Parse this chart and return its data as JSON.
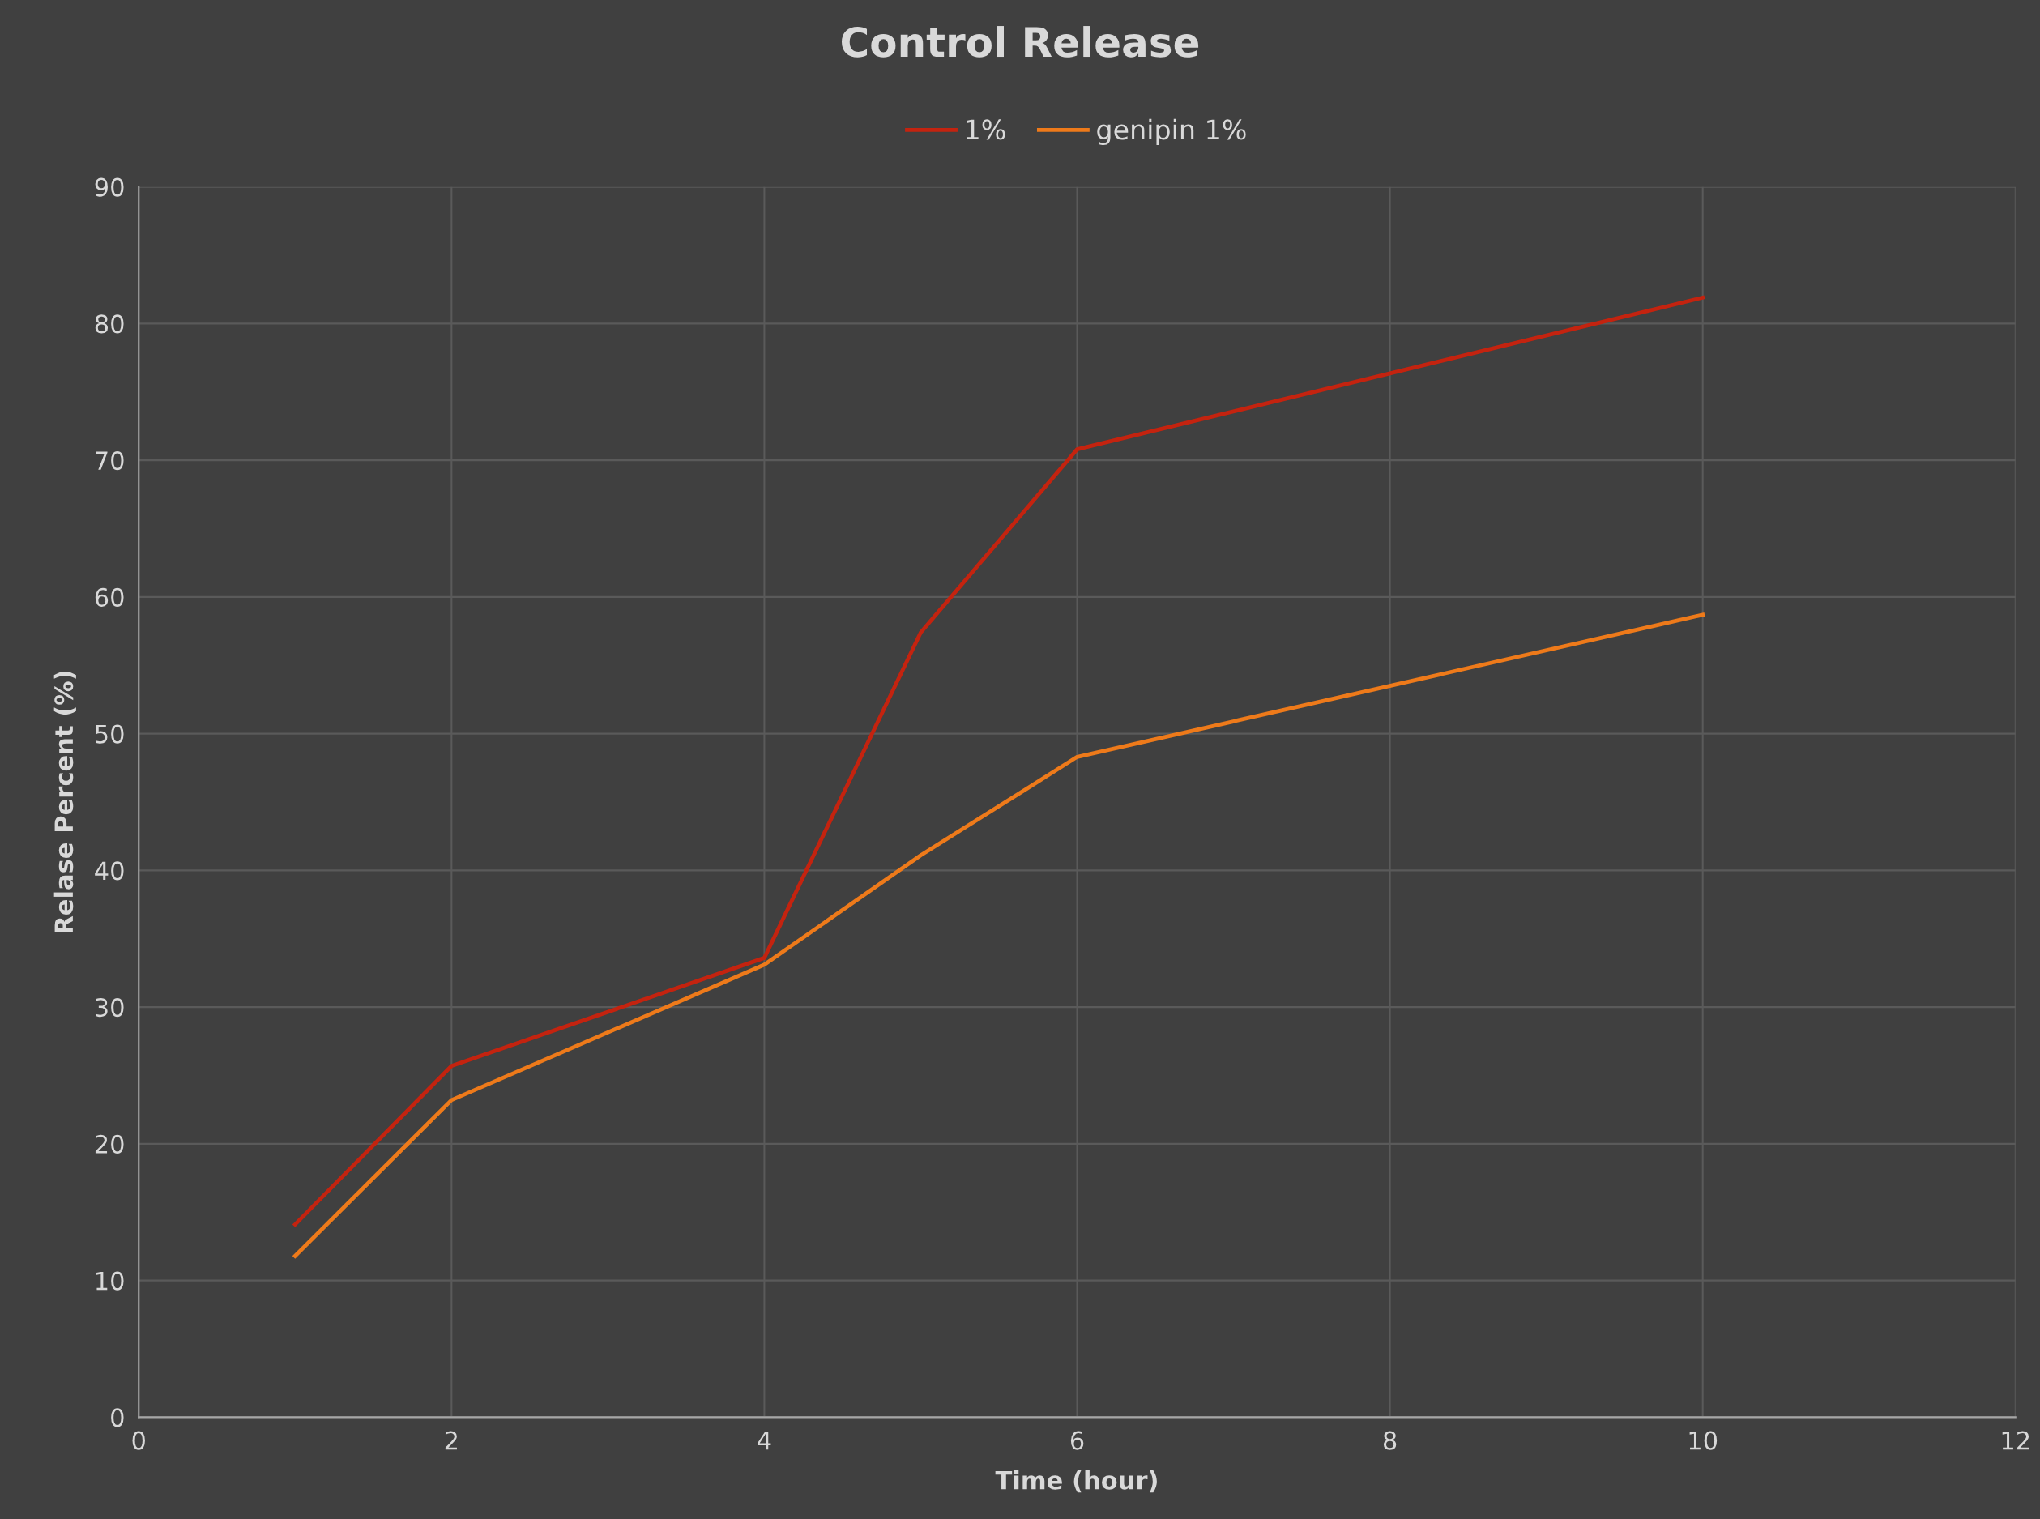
{
  "chart_data": {
    "type": "line",
    "title": "Control Release",
    "xlabel": "Time (hour)",
    "ylabel": "Relase Percent (%)",
    "x": [
      1,
      2,
      4,
      5,
      6,
      10
    ],
    "series": [
      {
        "name": "1%",
        "color": "#c4230f",
        "values": [
          14.1,
          25.7,
          33.6,
          57.4,
          70.8,
          81.9
        ]
      },
      {
        "name": "genipin 1%",
        "color": "#ee7a1a",
        "values": [
          11.8,
          23.2,
          33.1,
          41.1,
          48.3,
          58.7
        ]
      }
    ],
    "xlim": [
      0,
      12
    ],
    "xticks": [
      0,
      2,
      4,
      6,
      8,
      10,
      12
    ],
    "ylim": [
      0,
      90
    ],
    "yticks": [
      0,
      10,
      20,
      30,
      40,
      50,
      60,
      70,
      80,
      90
    ],
    "grid": true,
    "legend": "top",
    "marker": "none",
    "line_style": "solid"
  }
}
